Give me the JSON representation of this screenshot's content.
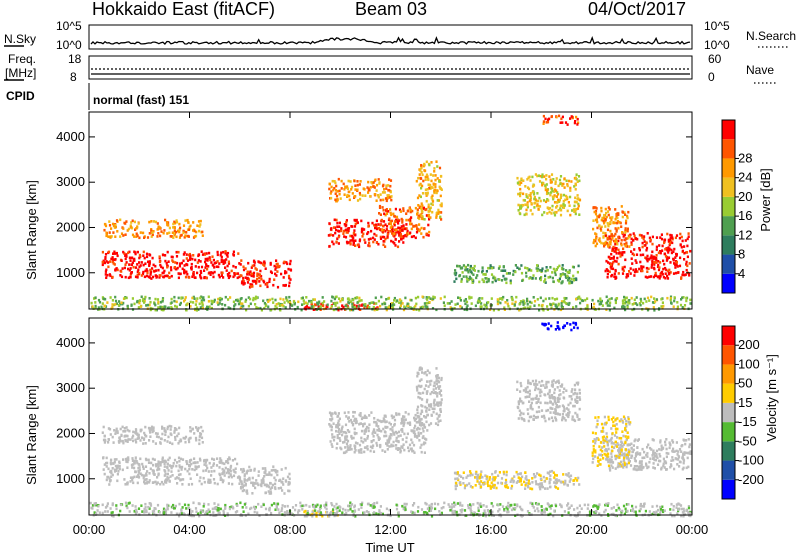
{
  "header": {
    "station": "Hokkaido East (fitACF)",
    "beam": "Beam 03",
    "date": "04/Oct/2017"
  },
  "panels": {
    "nsky": {
      "label": "N.Sky",
      "left_ticks": [
        "10^5",
        "10^0"
      ],
      "right_label": "N.Search",
      "right_ticks": [
        "10^5",
        "10^0"
      ]
    },
    "freq": {
      "label_line1": "Freq.",
      "label_line2": "[MHz]",
      "left_ticks": [
        "18",
        "8"
      ],
      "right_label": "Nave",
      "right_ticks": [
        "60",
        "0"
      ]
    },
    "cpid": {
      "label": "CPID",
      "text": "normal (fast) 151"
    }
  },
  "chart_data": [
    {
      "type": "heatmap",
      "name": "power",
      "ylabel": "Slant Range [km]",
      "yticks": [
        "1000",
        "2000",
        "3000",
        "4000"
      ],
      "ylim": [
        200,
        4550
      ],
      "colorbar_label": "Power [dB]",
      "colorbar_ticks": [
        "4",
        "8",
        "12",
        "16",
        "20",
        "24",
        "28"
      ],
      "colorbar_colors": [
        "#0000ff",
        "#1f4fa8",
        "#2e7d5e",
        "#4f9f50",
        "#99cc33",
        "#f0c020",
        "#ff9900",
        "#ff5500",
        "#ff0000"
      ],
      "range": [
        0,
        30
      ],
      "regions": [
        {
          "t0": 0.5,
          "t1": 6.0,
          "r0": 900,
          "r1": 1500,
          "value": 29
        },
        {
          "t0": 6.0,
          "t1": 8.0,
          "r0": 700,
          "r1": 1300,
          "value": 28
        },
        {
          "t0": 9.5,
          "t1": 12.5,
          "r0": 1600,
          "r1": 2200,
          "value": 28
        },
        {
          "t0": 11.5,
          "t1": 13.5,
          "r0": 1800,
          "r1": 2500,
          "value": 25
        },
        {
          "t0": 13.0,
          "t1": 14.0,
          "r0": 2200,
          "r1": 3500,
          "value": 20
        },
        {
          "t0": 0.5,
          "t1": 4.5,
          "r0": 1800,
          "r1": 2200,
          "value": 22
        },
        {
          "t0": 20.5,
          "t1": 23.9,
          "r0": 900,
          "r1": 1900,
          "value": 29
        },
        {
          "t0": 20.0,
          "t1": 21.5,
          "r0": 1600,
          "r1": 2500,
          "value": 22
        },
        {
          "t0": 17.0,
          "t1": 19.5,
          "r0": 2300,
          "r1": 3200,
          "value": 18
        },
        {
          "t0": 14.5,
          "t1": 19.5,
          "r0": 800,
          "r1": 1200,
          "value": 12
        },
        {
          "t0": 8.5,
          "t1": 11.5,
          "r0": 200,
          "r1": 350,
          "value": 28
        },
        {
          "t0": 18.0,
          "t1": 19.5,
          "r0": 4300,
          "r1": 4500,
          "value": 26
        },
        {
          "t0": 9.5,
          "t1": 12.0,
          "r0": 2600,
          "r1": 3100,
          "value": 22
        },
        {
          "t0": 0.0,
          "t1": 23.9,
          "r0": 200,
          "r1": 500,
          "value": 14
        }
      ]
    },
    {
      "type": "heatmap",
      "name": "velocity",
      "ylabel": "Slant Range [km]",
      "yticks": [
        "1000",
        "2000",
        "3000",
        "4000"
      ],
      "ylim": [
        200,
        4550
      ],
      "colorbar_label": "Velocity [m s⁻¹]",
      "colorbar_ticks": [
        "200",
        "100",
        "50",
        "15",
        "-15",
        "-50",
        "-100",
        "-200"
      ],
      "colorbar_colors": [
        "#0000ff",
        "#1f4fa8",
        "#2e7d5e",
        "#55bb33",
        "#bdbdbd",
        "#ffcc00",
        "#ff9900",
        "#ff5500",
        "#ff0000"
      ],
      "range": [
        -250,
        250
      ],
      "regions": [
        {
          "t0": 0.5,
          "t1": 6.0,
          "r0": 900,
          "r1": 1500,
          "value": 0
        },
        {
          "t0": 6.0,
          "t1": 8.0,
          "r0": 700,
          "r1": 1300,
          "value": 0
        },
        {
          "t0": 9.5,
          "t1": 13.5,
          "r0": 1600,
          "r1": 2500,
          "value": 0
        },
        {
          "t0": 13.0,
          "t1": 14.0,
          "r0": 2200,
          "r1": 3500,
          "value": 0
        },
        {
          "t0": 0.5,
          "t1": 4.5,
          "r0": 1800,
          "r1": 2200,
          "value": 0
        },
        {
          "t0": 20.5,
          "t1": 23.9,
          "r0": 1200,
          "r1": 1900,
          "value": 0
        },
        {
          "t0": 20.0,
          "t1": 21.5,
          "r0": 1300,
          "r1": 2400,
          "value": 30
        },
        {
          "t0": 17.0,
          "t1": 19.5,
          "r0": 2300,
          "r1": 3200,
          "value": 0
        },
        {
          "t0": 14.5,
          "t1": 19.5,
          "r0": 800,
          "r1": 1200,
          "value": 25
        },
        {
          "t0": 8.5,
          "t1": 10.0,
          "r0": 200,
          "r1": 320,
          "value": 40
        },
        {
          "t0": 18.0,
          "t1": 19.5,
          "r0": 4300,
          "r1": 4500,
          "value": -240
        },
        {
          "t0": 0.0,
          "t1": 23.9,
          "r0": 200,
          "r1": 500,
          "value": -20
        }
      ]
    }
  ],
  "xaxis": {
    "label": "Time UT",
    "ticks": [
      "00:00",
      "04:00",
      "08:00",
      "12:00",
      "16:00",
      "20:00",
      "00:00"
    ],
    "range_hours": [
      0,
      24
    ]
  }
}
